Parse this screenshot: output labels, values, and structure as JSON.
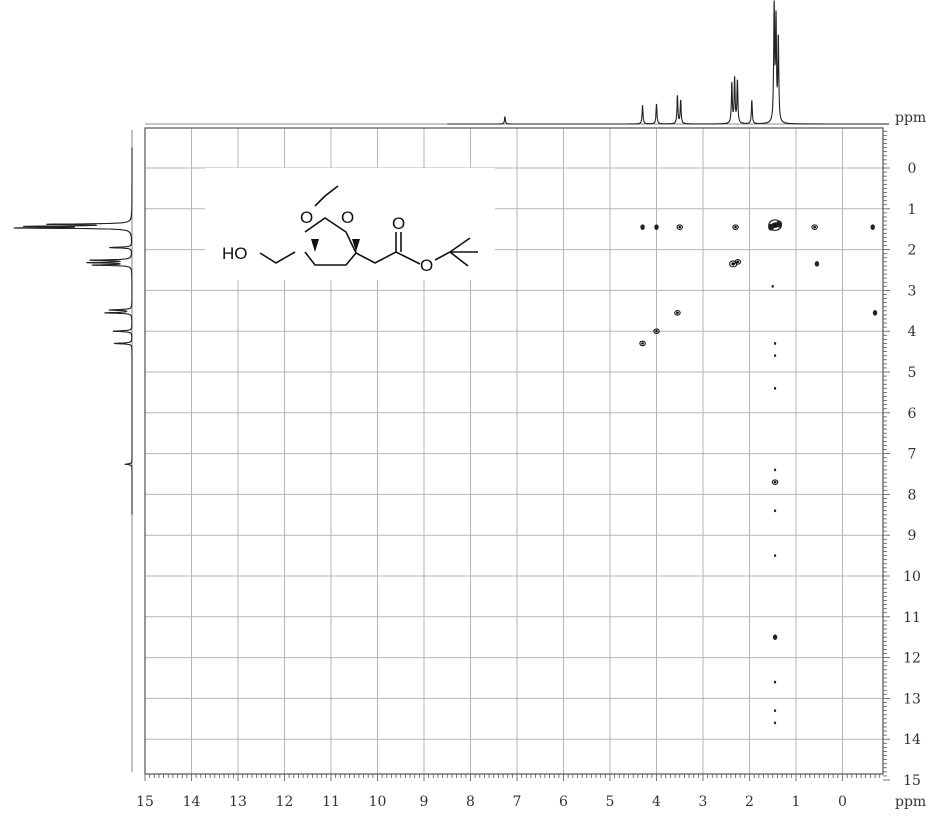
{
  "chart_data": {
    "type": "scatter",
    "title": "",
    "xlabel": "ppm",
    "ylabel": "ppm",
    "xlim": [
      15,
      -1
    ],
    "ylim": [
      -0.5,
      15
    ],
    "x_ticks": [
      "15",
      "14",
      "13",
      "12",
      "11",
      "10",
      "9",
      "8",
      "7",
      "6",
      "5",
      "4",
      "3",
      "2",
      "1",
      "0"
    ],
    "y_ticks": [
      "0",
      "1",
      "2",
      "3",
      "4",
      "5",
      "6",
      "7",
      "8",
      "9",
      "10",
      "11",
      "12",
      "13",
      "14",
      "15"
    ],
    "grid": true,
    "projection_1d_peaks": [
      {
        "ppm": 7.26,
        "intensity": 0.06
      },
      {
        "ppm": 4.3,
        "intensity": 0.16
      },
      {
        "ppm": 4.0,
        "intensity": 0.17
      },
      {
        "ppm": 3.55,
        "intensity": 0.24
      },
      {
        "ppm": 3.48,
        "intensity": 0.2
      },
      {
        "ppm": 2.38,
        "intensity": 0.34
      },
      {
        "ppm": 2.32,
        "intensity": 0.38
      },
      {
        "ppm": 2.26,
        "intensity": 0.36
      },
      {
        "ppm": 1.95,
        "intensity": 0.2
      },
      {
        "ppm": 1.47,
        "intensity": 1.0
      },
      {
        "ppm": 1.43,
        "intensity": 0.85
      },
      {
        "ppm": 1.38,
        "intensity": 0.7
      }
    ],
    "cross_peaks": [
      {
        "x": 4.3,
        "y": 1.45,
        "size": 2
      },
      {
        "x": 4.0,
        "y": 1.45,
        "size": 2
      },
      {
        "x": 3.5,
        "y": 1.45,
        "size": 3
      },
      {
        "x": 2.3,
        "y": 1.45,
        "size": 3
      },
      {
        "x": 1.45,
        "y": 1.4,
        "size": 7
      },
      {
        "x": 0.6,
        "y": 1.45,
        "size": 3
      },
      {
        "x": -0.65,
        "y": 1.45,
        "size": 2
      },
      {
        "x": 2.35,
        "y": 2.35,
        "size": 4
      },
      {
        "x": 2.25,
        "y": 2.3,
        "size": 3
      },
      {
        "x": 0.55,
        "y": 2.35,
        "size": 2
      },
      {
        "x": 1.5,
        "y": 2.9,
        "size": 1
      },
      {
        "x": 3.55,
        "y": 3.55,
        "size": 3
      },
      {
        "x": -0.7,
        "y": 3.55,
        "size": 2
      },
      {
        "x": 4.0,
        "y": 4.0,
        "size": 3
      },
      {
        "x": 4.3,
        "y": 4.3,
        "size": 3
      },
      {
        "x": 1.45,
        "y": 4.3,
        "size": 1
      },
      {
        "x": 1.45,
        "y": 4.6,
        "size": 1
      },
      {
        "x": 1.45,
        "y": 5.4,
        "size": 1
      },
      {
        "x": 1.45,
        "y": 7.4,
        "size": 1
      },
      {
        "x": 1.45,
        "y": 7.7,
        "size": 3
      },
      {
        "x": 1.45,
        "y": 8.4,
        "size": 1
      },
      {
        "x": 1.45,
        "y": 9.5,
        "size": 1
      },
      {
        "x": 1.45,
        "y": 11.5,
        "size": 2
      },
      {
        "x": 1.45,
        "y": 12.6,
        "size": 1
      },
      {
        "x": 1.45,
        "y": 13.3,
        "size": 1
      },
      {
        "x": 1.45,
        "y": 13.6,
        "size": 1
      }
    ]
  },
  "structure": {
    "ho_label": "HO",
    "oxygen": "O"
  }
}
